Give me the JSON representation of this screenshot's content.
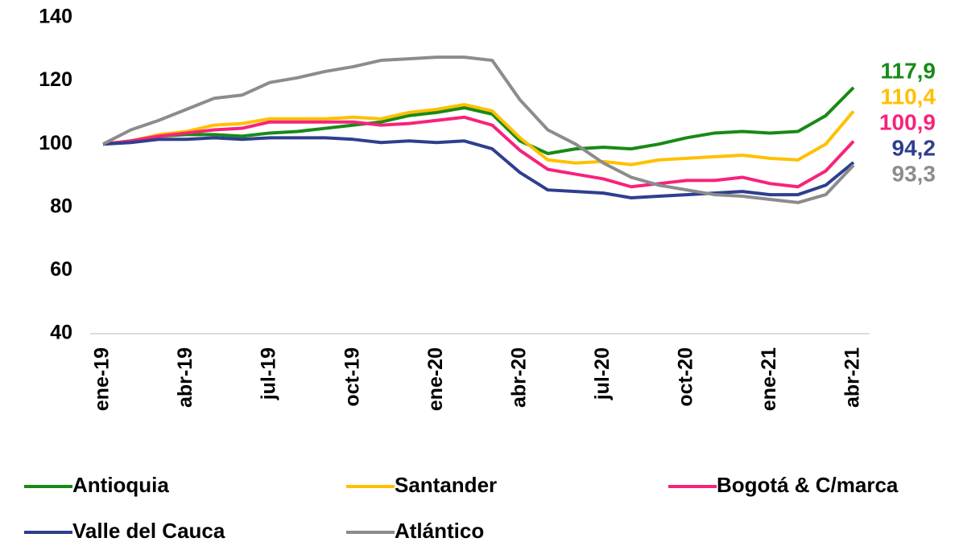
{
  "chart_data": {
    "type": "line",
    "categories": [
      "ene-19",
      null,
      null,
      "abr-19",
      null,
      null,
      "jul-19",
      null,
      null,
      "oct-19",
      null,
      null,
      "ene-20",
      null,
      null,
      "abr-20",
      null,
      null,
      "jul-20",
      null,
      null,
      "oct-20",
      null,
      null,
      "ene-21",
      null,
      null,
      "abr-21"
    ],
    "ylim": [
      40,
      140
    ],
    "yticks": [
      40,
      60,
      80,
      100,
      120,
      140
    ],
    "series": [
      {
        "name": "Antioquia",
        "color": "#178a17",
        "values": [
          100,
          101,
          102.5,
          103,
          103,
          102.5,
          103.5,
          104,
          105,
          106,
          107,
          109,
          110,
          111.5,
          109.5,
          101,
          97,
          98.5,
          99,
          98.5,
          100,
          102,
          103.5,
          104,
          103.5,
          104,
          109,
          117.9
        ],
        "value_labels": [
          null,
          null,
          null,
          null,
          null,
          null,
          null,
          null,
          null,
          null,
          null,
          null,
          null,
          null,
          null,
          null,
          null,
          null,
          null,
          null,
          null,
          null,
          null,
          null,
          null,
          null,
          null,
          "117,9"
        ]
      },
      {
        "name": "Santander",
        "color": "#ffc000",
        "values": [
          100,
          101,
          103,
          104,
          106,
          106.5,
          108,
          108,
          108,
          108.5,
          108,
          110,
          111,
          112.5,
          110.5,
          102,
          95,
          94,
          94.5,
          93.5,
          95,
          95.5,
          96,
          96.5,
          95.5,
          95,
          100,
          110.4
        ],
        "value_labels": [
          null,
          null,
          null,
          null,
          null,
          null,
          null,
          null,
          null,
          null,
          null,
          null,
          null,
          null,
          null,
          null,
          null,
          null,
          null,
          null,
          null,
          null,
          null,
          null,
          null,
          null,
          null,
          "110,4"
        ]
      },
      {
        "name": "Bogotá & C/marca",
        "color": "#f7237a",
        "values": [
          100,
          101,
          102.5,
          103.5,
          104.5,
          105,
          107,
          107,
          107,
          107,
          106,
          106.5,
          107.5,
          108.5,
          106,
          98,
          92,
          90.5,
          89,
          86.5,
          87.5,
          88.5,
          88.5,
          89.5,
          87.5,
          86.5,
          91.5,
          100.9
        ],
        "value_labels": [
          null,
          null,
          null,
          null,
          null,
          null,
          null,
          null,
          null,
          null,
          null,
          null,
          null,
          null,
          null,
          null,
          null,
          null,
          null,
          null,
          null,
          null,
          null,
          null,
          null,
          null,
          null,
          "100,9"
        ]
      },
      {
        "name": "Valle del Cauca",
        "color": "#2e3f8f",
        "values": [
          100,
          100.5,
          101.5,
          101.5,
          102,
          101.5,
          102,
          102,
          102,
          101.5,
          100.5,
          101,
          100.5,
          101,
          98.5,
          91,
          85.5,
          85,
          84.5,
          83,
          83.5,
          84,
          84.5,
          85,
          84,
          84,
          87,
          94.2
        ],
        "value_labels": [
          null,
          null,
          null,
          null,
          null,
          null,
          null,
          null,
          null,
          null,
          null,
          null,
          null,
          null,
          null,
          null,
          null,
          null,
          null,
          null,
          null,
          null,
          null,
          null,
          null,
          null,
          null,
          "94,2"
        ]
      },
      {
        "name": "Atlántico",
        "color": "#8c8c8c",
        "values": [
          100,
          104.5,
          107.5,
          111,
          114.5,
          115.5,
          119.5,
          121,
          123,
          124.5,
          126.5,
          127,
          127.5,
          127.5,
          126.5,
          114,
          104.5,
          100,
          94,
          89.5,
          87,
          85.5,
          84,
          83.5,
          82.5,
          81.5,
          84,
          93.3
        ],
        "value_labels": [
          null,
          null,
          null,
          null,
          null,
          null,
          null,
          null,
          null,
          null,
          null,
          null,
          null,
          null,
          null,
          null,
          null,
          null,
          null,
          null,
          null,
          null,
          null,
          null,
          null,
          null,
          null,
          "93,3"
        ]
      }
    ]
  }
}
